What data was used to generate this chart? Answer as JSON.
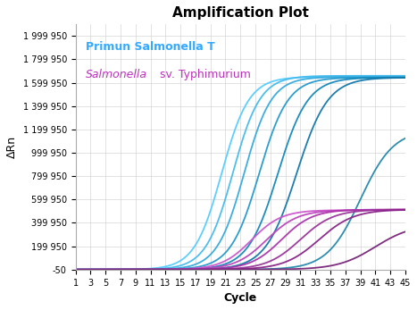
{
  "title": "Amplification Plot",
  "xlabel": "Cycle",
  "ylabel": "ΔRn",
  "xlim": [
    1,
    45
  ],
  "ylim": [
    -50,
    2099950
  ],
  "xticks": [
    1,
    3,
    5,
    7,
    9,
    11,
    13,
    15,
    17,
    19,
    21,
    23,
    25,
    27,
    29,
    31,
    33,
    35,
    37,
    39,
    41,
    43,
    45
  ],
  "ytick_vals": [
    -50,
    199950,
    399950,
    599950,
    799950,
    999950,
    1199950,
    1399950,
    1599950,
    1799950,
    1999950
  ],
  "ytick_labels": [
    "-50",
    "199 950",
    "399 950",
    "599 950",
    "799 950",
    "999 950",
    "1 199 950",
    "1 399 950",
    "1 599 950",
    "1 799 950",
    "1 999 950"
  ],
  "legend_blue": "Primun Salmonella T",
  "legend_purple_italic": "Salmonella",
  "legend_purple_rest": " sv. Typhimurium",
  "blue_colors": [
    "#55CCFF",
    "#44BBEE",
    "#33AADD",
    "#2299CC",
    "#1188BB",
    "#1177AA",
    "#2288AA"
  ],
  "purple_colors": [
    "#CC55CC",
    "#BB44BB",
    "#AA33AA",
    "#993399",
    "#882288",
    "#772277"
  ],
  "blue_curves": [
    {
      "midpoint": 20.5,
      "plateau": 1650000,
      "rate": 0.55
    },
    {
      "midpoint": 22.0,
      "plateau": 1660000,
      "rate": 0.55
    },
    {
      "midpoint": 23.5,
      "plateau": 1650000,
      "rate": 0.55
    },
    {
      "midpoint": 25.5,
      "plateau": 1645000,
      "rate": 0.52
    },
    {
      "midpoint": 28.0,
      "plateau": 1645000,
      "rate": 0.5
    },
    {
      "midpoint": 30.5,
      "plateau": 1645000,
      "rate": 0.48
    },
    {
      "midpoint": 39.0,
      "plateau": 1200000,
      "rate": 0.45
    }
  ],
  "purple_curves": [
    {
      "midpoint": 24.5,
      "plateau": 510000,
      "rate": 0.5
    },
    {
      "midpoint": 26.5,
      "plateau": 510000,
      "rate": 0.48
    },
    {
      "midpoint": 28.5,
      "plateau": 515000,
      "rate": 0.48
    },
    {
      "midpoint": 31.0,
      "plateau": 515000,
      "rate": 0.45
    },
    {
      "midpoint": 33.5,
      "plateau": 515000,
      "rate": 0.43
    },
    {
      "midpoint": 41.0,
      "plateau": 390000,
      "rate": 0.4
    }
  ],
  "background_color": "#FFFFFF",
  "grid_color": "#CCCCCC"
}
